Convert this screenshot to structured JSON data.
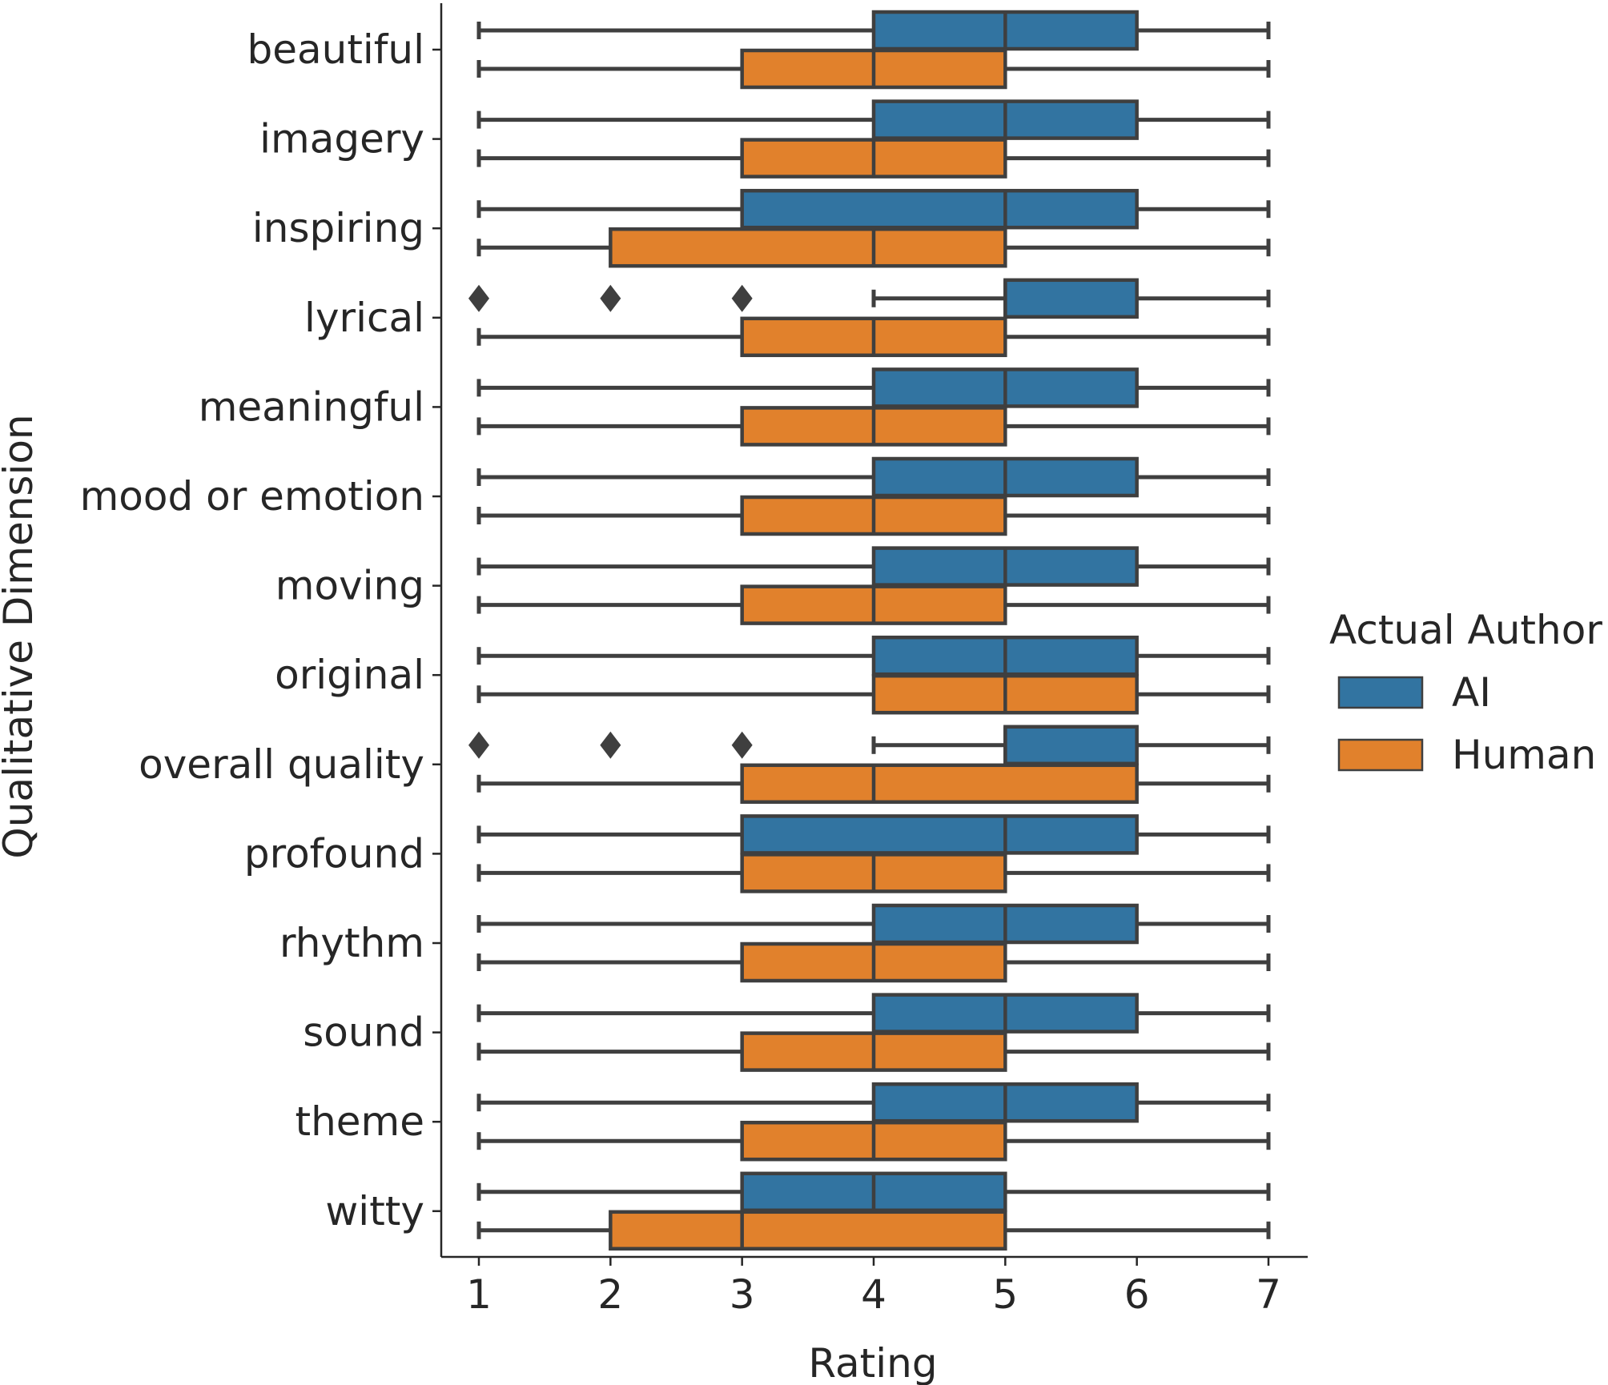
{
  "chart_data": {
    "type": "boxplot",
    "orientation": "horizontal",
    "xlabel": "Rating",
    "ylabel": "Qualitative Dimension",
    "xlim": [
      0.72,
      7.3
    ],
    "xticks": [
      1,
      2,
      3,
      4,
      5,
      6,
      7
    ],
    "grid": false,
    "legend": {
      "title": "Actual Author",
      "position": "right",
      "entries": [
        {
          "name": "AI",
          "color": "#3274a1"
        },
        {
          "name": "Human",
          "color": "#e1812c"
        }
      ]
    },
    "categories": [
      "beautiful",
      "imagery",
      "inspiring",
      "lyrical",
      "meaningful",
      "mood or emotion",
      "moving",
      "original",
      "overall quality",
      "profound",
      "rhythm",
      "sound",
      "theme",
      "witty"
    ],
    "series": [
      {
        "name": "AI",
        "color": "#3274a1",
        "boxes": [
          {
            "whisker_low": 1,
            "q1": 4,
            "median": 5,
            "q3": 6,
            "whisker_high": 7,
            "outliers": []
          },
          {
            "whisker_low": 1,
            "q1": 4,
            "median": 5,
            "q3": 6,
            "whisker_high": 7,
            "outliers": []
          },
          {
            "whisker_low": 1,
            "q1": 3,
            "median": 5,
            "q3": 6,
            "whisker_high": 7,
            "outliers": []
          },
          {
            "whisker_low": 4,
            "q1": 5,
            "median": 5,
            "q3": 6,
            "whisker_high": 7,
            "outliers": [
              1,
              2,
              3
            ]
          },
          {
            "whisker_low": 1,
            "q1": 4,
            "median": 5,
            "q3": 6,
            "whisker_high": 7,
            "outliers": []
          },
          {
            "whisker_low": 1,
            "q1": 4,
            "median": 5,
            "q3": 6,
            "whisker_high": 7,
            "outliers": []
          },
          {
            "whisker_low": 1,
            "q1": 4,
            "median": 5,
            "q3": 6,
            "whisker_high": 7,
            "outliers": []
          },
          {
            "whisker_low": 1,
            "q1": 4,
            "median": 5,
            "q3": 6,
            "whisker_high": 7,
            "outliers": []
          },
          {
            "whisker_low": 4,
            "q1": 5,
            "median": 5,
            "q3": 6,
            "whisker_high": 7,
            "outliers": [
              1,
              2,
              3
            ]
          },
          {
            "whisker_low": 1,
            "q1": 3,
            "median": 5,
            "q3": 6,
            "whisker_high": 7,
            "outliers": []
          },
          {
            "whisker_low": 1,
            "q1": 4,
            "median": 5,
            "q3": 6,
            "whisker_high": 7,
            "outliers": []
          },
          {
            "whisker_low": 1,
            "q1": 4,
            "median": 5,
            "q3": 6,
            "whisker_high": 7,
            "outliers": []
          },
          {
            "whisker_low": 1,
            "q1": 4,
            "median": 5,
            "q3": 6,
            "whisker_high": 7,
            "outliers": []
          },
          {
            "whisker_low": 1,
            "q1": 3,
            "median": 4,
            "q3": 5,
            "whisker_high": 7,
            "outliers": []
          }
        ]
      },
      {
        "name": "Human",
        "color": "#e1812c",
        "boxes": [
          {
            "whisker_low": 1,
            "q1": 3,
            "median": 4,
            "q3": 5,
            "whisker_high": 7,
            "outliers": []
          },
          {
            "whisker_low": 1,
            "q1": 3,
            "median": 4,
            "q3": 5,
            "whisker_high": 7,
            "outliers": []
          },
          {
            "whisker_low": 1,
            "q1": 2,
            "median": 4,
            "q3": 5,
            "whisker_high": 7,
            "outliers": []
          },
          {
            "whisker_low": 1,
            "q1": 3,
            "median": 4,
            "q3": 5,
            "whisker_high": 7,
            "outliers": []
          },
          {
            "whisker_low": 1,
            "q1": 3,
            "median": 4,
            "q3": 5,
            "whisker_high": 7,
            "outliers": []
          },
          {
            "whisker_low": 1,
            "q1": 3,
            "median": 4,
            "q3": 5,
            "whisker_high": 7,
            "outliers": []
          },
          {
            "whisker_low": 1,
            "q1": 3,
            "median": 4,
            "q3": 5,
            "whisker_high": 7,
            "outliers": []
          },
          {
            "whisker_low": 1,
            "q1": 4,
            "median": 5,
            "q3": 6,
            "whisker_high": 7,
            "outliers": []
          },
          {
            "whisker_low": 1,
            "q1": 3,
            "median": 4,
            "q3": 6,
            "whisker_high": 7,
            "outliers": []
          },
          {
            "whisker_low": 1,
            "q1": 3,
            "median": 4,
            "q3": 5,
            "whisker_high": 7,
            "outliers": []
          },
          {
            "whisker_low": 1,
            "q1": 3,
            "median": 4,
            "q3": 5,
            "whisker_high": 7,
            "outliers": []
          },
          {
            "whisker_low": 1,
            "q1": 3,
            "median": 4,
            "q3": 5,
            "whisker_high": 7,
            "outliers": []
          },
          {
            "whisker_low": 1,
            "q1": 3,
            "median": 4,
            "q3": 5,
            "whisker_high": 7,
            "outliers": []
          },
          {
            "whisker_low": 1,
            "q1": 2,
            "median": 3,
            "q3": 5,
            "whisker_high": 7,
            "outliers": []
          }
        ]
      }
    ]
  }
}
